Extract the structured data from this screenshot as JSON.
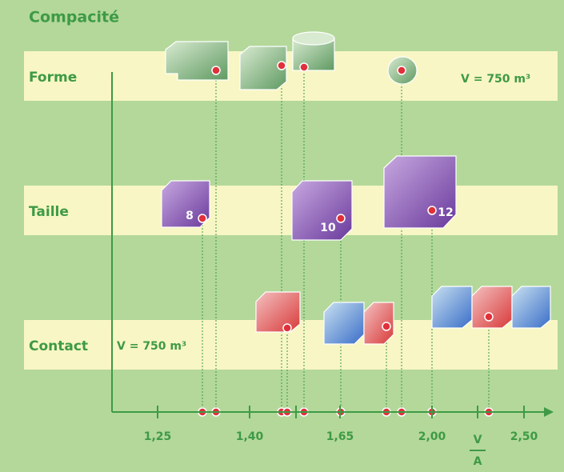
{
  "header": {
    "title": "Compacité"
  },
  "rows": [
    {
      "label": "Forme",
      "annotation": "V = 750 m³"
    },
    {
      "label": "Taille"
    },
    {
      "label": "Contact",
      "annotation": "V = 750 m³"
    }
  ],
  "cube_labels": [
    "8",
    "10",
    "12"
  ],
  "axis": {
    "ticks": [
      "1,25",
      "1,40",
      "1,65",
      "2,00",
      "2,50"
    ],
    "label_top": "V",
    "label_bottom": "A"
  }
}
